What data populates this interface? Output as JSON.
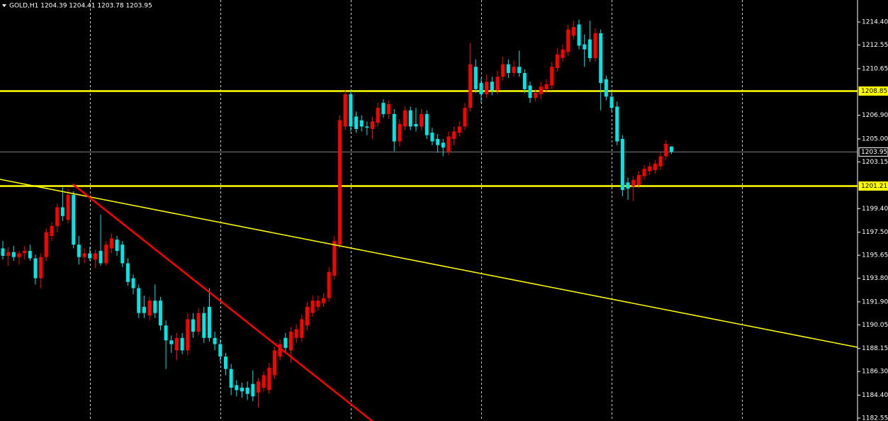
{
  "chart_data": {
    "type": "candlestick",
    "title": "GOLD,H1  1204.39 1204.41 1203.78 1203.95",
    "up_color": "#ff0000",
    "down_color": "#00e5e5",
    "ylim": [
      1182.32,
      1216.17
    ],
    "yticks": [
      {
        "value": 1214.4,
        "label": "1214.40"
      },
      1212.55,
      1210.65,
      {
        "value": 1206.9,
        "label": "1206.90"
      },
      {
        "value": 1205.0,
        "label": "1205.00"
      },
      1203.15,
      {
        "value": 1199.4,
        "label": "1199.40"
      },
      {
        "value": 1197.5,
        "label": "1197.50"
      },
      1195.65,
      {
        "value": 1193.8,
        "label": "1193.80"
      },
      {
        "value": 1191.9,
        "label": "1191.90"
      },
      1190.05,
      1188.15,
      {
        "value": 1186.3,
        "label": "1186.30"
      },
      {
        "value": 1184.4,
        "label": "1184.40"
      },
      1182.55
    ],
    "hlines": [
      {
        "value": 1208.85,
        "color": "#ffff00"
      },
      {
        "value": 1201.21,
        "color": "#ffff00"
      },
      {
        "value": 1203.95,
        "color": "#808080"
      }
    ],
    "candles": [
      [
        1196.2,
        1196.8,
        1195.3,
        1195.6
      ],
      [
        1195.6,
        1196.3,
        1194.8,
        1195.9
      ],
      [
        1195.9,
        1196.4,
        1195.2,
        1195.5
      ],
      [
        1195.5,
        1196.0,
        1194.9,
        1195.8
      ],
      [
        1195.8,
        1196.4,
        1195.3,
        1196.0
      ],
      [
        1196.0,
        1196.5,
        1195.2,
        1195.4
      ],
      [
        1195.4,
        1195.7,
        1193.3,
        1193.8
      ],
      [
        1193.8,
        1195.8,
        1193.0,
        1195.5
      ],
      [
        1195.5,
        1197.8,
        1195.2,
        1197.5
      ],
      [
        1197.2,
        1198.3,
        1196.8,
        1198.0
      ],
      [
        1198.0,
        1199.8,
        1197.5,
        1199.5
      ],
      [
        1199.5,
        1201.1,
        1198.4,
        1198.8
      ],
      [
        1198.5,
        1201.0,
        1198.2,
        1200.5
      ],
      [
        1200.5,
        1200.8,
        1196.2,
        1196.5
      ],
      [
        1196.5,
        1197.2,
        1194.9,
        1195.5
      ],
      [
        1195.5,
        1196.2,
        1195.0,
        1195.8
      ],
      [
        1195.8,
        1196.3,
        1195.2,
        1195.4
      ],
      [
        1195.3,
        1196.1,
        1194.6,
        1195.8
      ],
      [
        1196.0,
        1198.9,
        1194.8,
        1195.0
      ],
      [
        1195.0,
        1196.8,
        1194.8,
        1196.5
      ],
      [
        1196.2,
        1197.4,
        1195.8,
        1197.0
      ],
      [
        1196.9,
        1197.2,
        1195.6,
        1196.0
      ],
      [
        1196.5,
        1196.8,
        1194.7,
        1195.0
      ],
      [
        1195.0,
        1195.4,
        1193.2,
        1193.5
      ],
      [
        1193.8,
        1194.1,
        1192.5,
        1193.0
      ],
      [
        1193.0,
        1193.3,
        1190.6,
        1191.0
      ],
      [
        1191.5,
        1192.4,
        1190.6,
        1191.0
      ],
      [
        1190.8,
        1192.3,
        1190.4,
        1192.0
      ],
      [
        1192.0,
        1193.3,
        1190.6,
        1191.0
      ],
      [
        1192.0,
        1192.3,
        1189.6,
        1190.0
      ],
      [
        1190.0,
        1190.4,
        1186.5,
        1188.8
      ],
      [
        1188.8,
        1189.2,
        1187.8,
        1188.5
      ],
      [
        1188.0,
        1189.4,
        1187.2,
        1189.0
      ],
      [
        1189.0,
        1189.4,
        1187.7,
        1188.0
      ],
      [
        1188.0,
        1191.0,
        1187.6,
        1190.5
      ],
      [
        1190.5,
        1191.0,
        1189.0,
        1189.5
      ],
      [
        1189.5,
        1191.4,
        1189.2,
        1191.0
      ],
      [
        1191.0,
        1191.5,
        1188.6,
        1189.0
      ],
      [
        1191.5,
        1193.0,
        1188.7,
        1189.0
      ],
      [
        1189.0,
        1189.5,
        1188.0,
        1188.5
      ],
      [
        1188.5,
        1188.9,
        1187.1,
        1187.5
      ],
      [
        1187.5,
        1187.8,
        1186.0,
        1186.5
      ],
      [
        1186.5,
        1186.9,
        1184.4,
        1185.0
      ],
      [
        1185.2,
        1185.6,
        1184.3,
        1184.8
      ],
      [
        1185.0,
        1185.4,
        1184.2,
        1184.7
      ],
      [
        1185.0,
        1185.5,
        1184.0,
        1184.5
      ],
      [
        1185.3,
        1186.4,
        1183.9,
        1184.3
      ],
      [
        1184.6,
        1185.8,
        1183.4,
        1185.5
      ],
      [
        1185.0,
        1186.3,
        1184.7,
        1186.0
      ],
      [
        1184.8,
        1187.0,
        1184.5,
        1186.6
      ],
      [
        1186.0,
        1188.3,
        1185.7,
        1188.0
      ],
      [
        1187.5,
        1188.9,
        1187.2,
        1188.5
      ],
      [
        1189.0,
        1189.4,
        1187.8,
        1188.2
      ],
      [
        1188.0,
        1189.9,
        1187.0,
        1189.5
      ],
      [
        1189.0,
        1190.1,
        1188.6,
        1189.7
      ],
      [
        1189.0,
        1190.9,
        1188.7,
        1190.5
      ],
      [
        1190.0,
        1191.9,
        1189.6,
        1191.5
      ],
      [
        1191.0,
        1192.4,
        1190.7,
        1192.0
      ],
      [
        1191.5,
        1192.4,
        1191.2,
        1192.0
      ],
      [
        1191.8,
        1192.6,
        1191.5,
        1192.2
      ],
      [
        1192.2,
        1194.7,
        1191.9,
        1194.3
      ],
      [
        1194.0,
        1197.2,
        1193.7,
        1196.8
      ],
      [
        1196.5,
        1206.9,
        1196.2,
        1206.5
      ],
      [
        1206.0,
        1208.9,
        1205.7,
        1208.6
      ],
      [
        1208.6,
        1208.9,
        1205.6,
        1206.0
      ],
      [
        1206.8,
        1207.2,
        1205.5,
        1205.8
      ],
      [
        1206.5,
        1206.9,
        1205.6,
        1206.0
      ],
      [
        1206.0,
        1206.4,
        1205.3,
        1205.9
      ],
      [
        1205.8,
        1206.8,
        1205.0,
        1206.4
      ],
      [
        1206.3,
        1207.9,
        1206.0,
        1207.5
      ],
      [
        1207.9,
        1208.2,
        1206.7,
        1207.0
      ],
      [
        1207.0,
        1208.1,
        1206.6,
        1207.8
      ],
      [
        1207.0,
        1207.4,
        1204.0,
        1204.8
      ],
      [
        1204.8,
        1206.6,
        1204.4,
        1206.2
      ],
      [
        1206.0,
        1207.6,
        1205.7,
        1207.3
      ],
      [
        1207.3,
        1207.6,
        1205.7,
        1206.0
      ],
      [
        1206.2,
        1207.5,
        1205.6,
        1206.0
      ],
      [
        1206.0,
        1207.4,
        1205.7,
        1207.0
      ],
      [
        1207.0,
        1207.3,
        1205.0,
        1205.3
      ],
      [
        1205.5,
        1205.9,
        1204.5,
        1204.8
      ],
      [
        1205.0,
        1205.4,
        1203.9,
        1204.5
      ],
      [
        1204.7,
        1205.0,
        1203.6,
        1204.3
      ],
      [
        1204.0,
        1205.6,
        1203.7,
        1205.2
      ],
      [
        1205.0,
        1206.0,
        1204.5,
        1205.6
      ],
      [
        1205.5,
        1206.4,
        1205.2,
        1206.0
      ],
      [
        1206.0,
        1207.9,
        1205.7,
        1207.5
      ],
      [
        1207.5,
        1212.7,
        1207.2,
        1211.0
      ],
      [
        1210.8,
        1211.4,
        1208.7,
        1209.0
      ],
      [
        1209.5,
        1209.9,
        1207.9,
        1208.6
      ],
      [
        1208.6,
        1210.2,
        1208.3,
        1209.6
      ],
      [
        1209.6,
        1210.0,
        1208.5,
        1208.9
      ],
      [
        1208.9,
        1210.5,
        1208.6,
        1210.0
      ],
      [
        1210.0,
        1211.6,
        1209.7,
        1211.0
      ],
      [
        1211.0,
        1211.4,
        1209.9,
        1210.3
      ],
      [
        1210.3,
        1211.3,
        1210.0,
        1210.8
      ],
      [
        1210.8,
        1212.1,
        1210.0,
        1210.3
      ],
      [
        1210.3,
        1210.6,
        1208.7,
        1209.0
      ],
      [
        1209.3,
        1209.6,
        1207.9,
        1208.3
      ],
      [
        1208.3,
        1209.0,
        1208.0,
        1208.7
      ],
      [
        1208.6,
        1209.6,
        1208.2,
        1209.2
      ],
      [
        1209.0,
        1209.8,
        1208.7,
        1209.4
      ],
      [
        1209.3,
        1211.2,
        1209.0,
        1210.8
      ],
      [
        1210.7,
        1212.3,
        1210.4,
        1211.8
      ],
      [
        1211.5,
        1212.6,
        1211.2,
        1212.2
      ],
      [
        1212.0,
        1214.2,
        1211.7,
        1213.8
      ],
      [
        1213.3,
        1214.5,
        1213.0,
        1214.0
      ],
      [
        1214.2,
        1214.6,
        1212.2,
        1212.5
      ],
      [
        1212.6,
        1213.4,
        1210.8,
        1212.2
      ],
      [
        1213.0,
        1214.5,
        1211.2,
        1211.5
      ],
      [
        1211.5,
        1213.9,
        1211.2,
        1213.5
      ],
      [
        1213.5,
        1213.8,
        1207.3,
        1209.5
      ],
      [
        1209.8,
        1210.1,
        1208.1,
        1208.4
      ],
      [
        1208.4,
        1208.8,
        1207.2,
        1207.5
      ],
      [
        1207.6,
        1208.0,
        1204.5,
        1204.8
      ],
      [
        1205.0,
        1205.3,
        1200.4,
        1200.9
      ],
      [
        1201.5,
        1201.9,
        1200.1,
        1201.0
      ],
      [
        1201.2,
        1202.0,
        1200.0,
        1201.7
      ],
      [
        1201.3,
        1202.4,
        1201.0,
        1202.1
      ],
      [
        1202.0,
        1202.9,
        1201.7,
        1202.6
      ],
      [
        1202.4,
        1203.1,
        1202.1,
        1202.8
      ],
      [
        1202.5,
        1203.3,
        1202.2,
        1203.0
      ],
      [
        1202.8,
        1203.9,
        1202.5,
        1203.6
      ],
      [
        1203.6,
        1204.9,
        1203.3,
        1204.6
      ],
      [
        1204.39,
        1204.41,
        1203.78,
        1203.95
      ]
    ]
  }
}
